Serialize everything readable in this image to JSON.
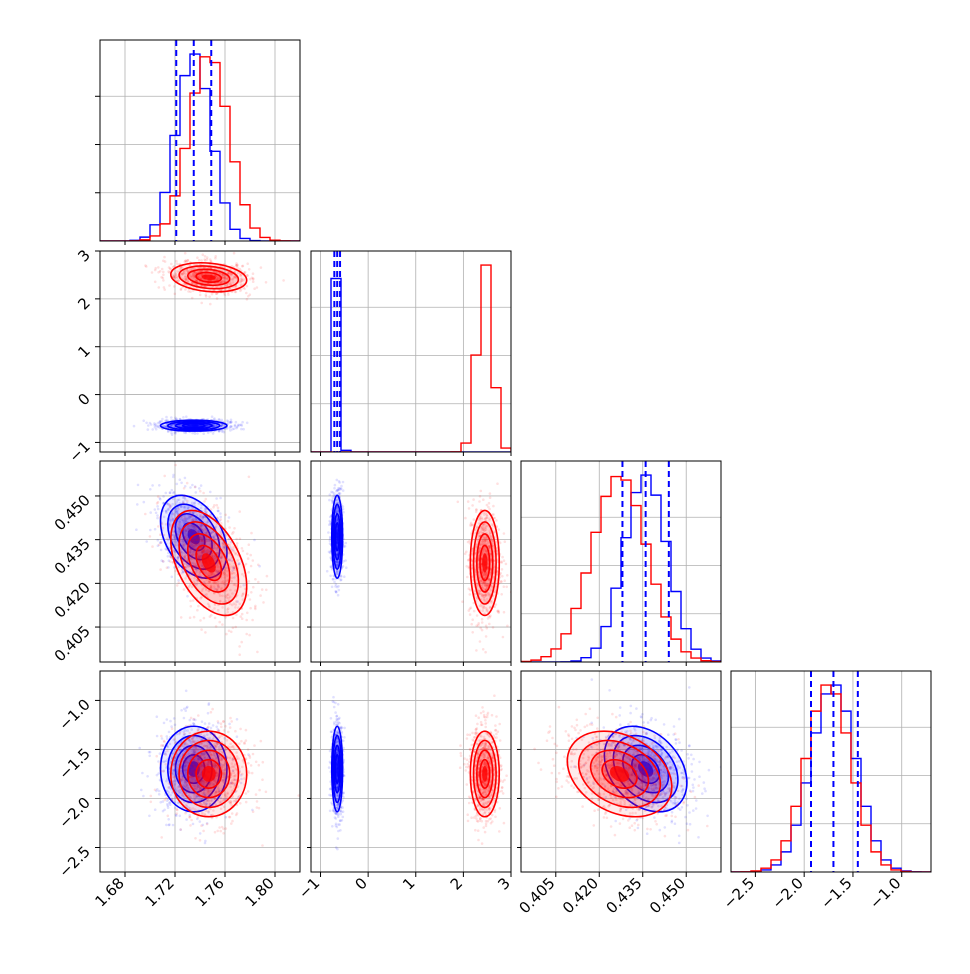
{
  "colors": {
    "series_a": "#0000ff",
    "series_b": "#ff0000",
    "grid": "#b0b0b0",
    "frame": "#000000"
  },
  "chart_data": {
    "type": "corner",
    "params": [
      {
        "key": "p0",
        "range": [
          1.66,
          1.82
        ],
        "ticks": [
          1.68,
          1.72,
          1.76,
          1.8
        ],
        "tick_labels": [
          "1.68",
          "1.72",
          "1.76",
          "1.80"
        ]
      },
      {
        "key": "p1",
        "range": [
          -1.2,
          3.0
        ],
        "ticks": [
          -1,
          0,
          1,
          2,
          3
        ],
        "tick_labels": [
          "−1",
          "0",
          "1",
          "2",
          "3"
        ]
      },
      {
        "key": "p2",
        "range": [
          0.393,
          0.462
        ],
        "ticks": [
          0.405,
          0.42,
          0.435,
          0.45
        ],
        "tick_labels": [
          "0.405",
          "0.420",
          "0.435",
          "0.450"
        ]
      },
      {
        "key": "p3",
        "range": [
          -2.75,
          -0.7
        ],
        "ticks": [
          -2.5,
          -2.0,
          -1.5,
          -1.0
        ],
        "tick_labels": [
          "−2.5",
          "−2.0",
          "−1.5",
          "−1.0"
        ]
      }
    ],
    "grid": true,
    "series": [
      {
        "color": "#0000ff",
        "mean": [
          1.735,
          -0.65,
          0.436,
          -1.7
        ],
        "sd": [
          0.014,
          0.06,
          0.0075,
          0.23
        ],
        "corr_01": 0.0,
        "corr_02": -0.38,
        "corr_03": 0.0,
        "corr_12": 0.0,
        "corr_13": 0.0,
        "corr_23": -0.32,
        "quantiles": {
          "p0": [
            1.721,
            1.735,
            1.749
          ],
          "p1": [
            -0.71,
            -0.65,
            -0.59
          ],
          "p2": [
            0.428,
            0.436,
            0.444
          ],
          "p3": [
            -1.93,
            -1.7,
            -1.45
          ]
        }
      },
      {
        "color": "#ff0000",
        "mean": [
          1.747,
          2.45,
          0.427,
          -1.75
        ],
        "sd": [
          0.016,
          0.16,
          0.0095,
          0.23
        ],
        "corr_01": -0.2,
        "corr_02": -0.45,
        "corr_03": 0.0,
        "corr_12": 0.0,
        "corr_13": 0.0,
        "corr_23": -0.3
      }
    ]
  }
}
